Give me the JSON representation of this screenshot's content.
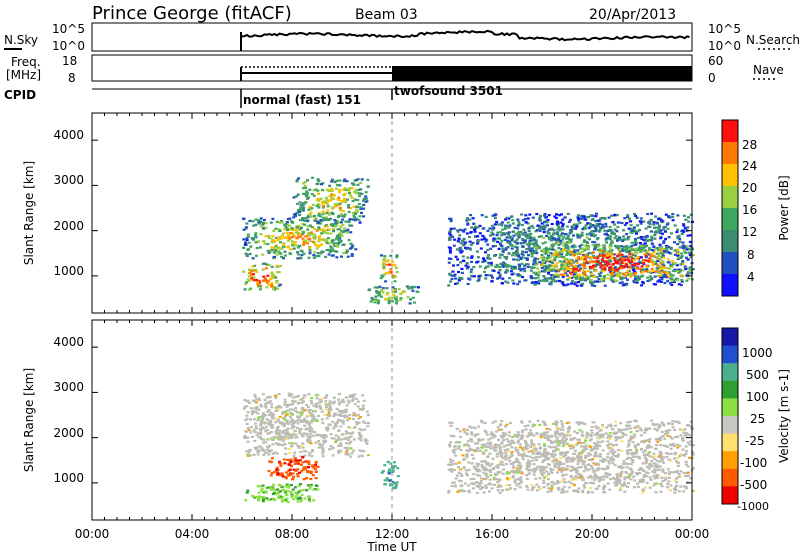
{
  "header": {
    "station": "Prince George (fitACF)",
    "beam": "Beam 03",
    "date": "20/Apr/2013"
  },
  "top_panels": {
    "nsky_label": "N.Sky",
    "nsearch_label": "N.Search",
    "noise_ticks": [
      "10^5",
      "10^0"
    ],
    "freq_label_1": "Freq.",
    "freq_label_2": "[MHz]",
    "freq_ticks": [
      "18",
      "8"
    ],
    "nave_label": "Nave",
    "nave_ticks": [
      "60",
      "0"
    ],
    "cpid_label": "CPID",
    "cpid_segments": [
      {
        "label": "normal (fast) 151",
        "start_hour": 6.0
      },
      {
        "label": "twofsound 3501",
        "start_hour": 12.0
      }
    ]
  },
  "colors": {
    "power_scale": [
      "#1010ff",
      "#2050c0",
      "#3c8c70",
      "#3ea860",
      "#9ad040",
      "#ffc000",
      "#ff7800",
      "#ff1010"
    ],
    "velocity_scale": [
      "#ee0000",
      "#ff5a00",
      "#ffa000",
      "#ffe070",
      "#c8c8c0",
      "#8ce040",
      "#2ea030",
      "#4cb090",
      "#2050d0",
      "#1818a8"
    ],
    "grey": "#bcbcb4"
  },
  "chart_data": [
    {
      "type": "heatmap",
      "name": "power",
      "ylabel": "Slant Range [km]",
      "colorbar_label": "Power [dB]",
      "colorbar_ticks": [
        "28",
        "24",
        "20",
        "16",
        "12",
        "8",
        "4"
      ],
      "x_range_hours": [
        0,
        24
      ],
      "y_range_km": [
        180,
        4600
      ],
      "yticks": [
        "4000",
        "3000",
        "2000",
        "1000"
      ],
      "cpid_change_hour": 12.0,
      "echo_regions": [
        {
          "x0": 6.0,
          "x1": 10.5,
          "y0": 1400,
          "y1": 2300,
          "peak": "mid"
        },
        {
          "x0": 6.0,
          "x1": 7.5,
          "y0": 700,
          "y1": 1300,
          "peak": "high"
        },
        {
          "x0": 8.0,
          "x1": 11.0,
          "y0": 2200,
          "y1": 3200,
          "peak": "mid"
        },
        {
          "x0": 11.5,
          "x1": 12.2,
          "y0": 900,
          "y1": 1500,
          "peak": "high"
        },
        {
          "x0": 11.0,
          "x1": 13.0,
          "y0": 400,
          "y1": 800,
          "peak": "mid"
        },
        {
          "x0": 14.2,
          "x1": 24.0,
          "y0": 800,
          "y1": 2400,
          "peak": "low"
        },
        {
          "x0": 17.5,
          "x1": 24.0,
          "y0": 900,
          "y1": 1700,
          "peak": "high"
        }
      ]
    },
    {
      "type": "heatmap",
      "name": "velocity",
      "ylabel": "Slant Range [km]",
      "xlabel": "Time UT",
      "colorbar_label": "Velocity [m s-1]",
      "colorbar_ticks": [
        "1000",
        "500",
        "100",
        "25",
        "-25",
        "-100",
        "-500",
        "-1000"
      ],
      "x_range_hours": [
        0,
        24
      ],
      "y_range_km": [
        180,
        4600
      ],
      "xticks": [
        "00:00",
        "04:00",
        "08:00",
        "12:00",
        "16:00",
        "20:00",
        "00:00"
      ],
      "yticks": [
        "4000",
        "3000",
        "2000",
        "1000"
      ],
      "cpid_change_hour": 12.0,
      "echo_regions": [
        {
          "x0": 6.0,
          "x1": 11.0,
          "y0": 1600,
          "y1": 3000,
          "vel": "ground"
        },
        {
          "x0": 7.0,
          "x1": 9.0,
          "y0": 1100,
          "y1": 1600,
          "vel": "away-high"
        },
        {
          "x0": 6.0,
          "x1": 9.0,
          "y0": 600,
          "y1": 1000,
          "vel": "toward-low"
        },
        {
          "x0": 11.5,
          "x1": 12.2,
          "y0": 900,
          "y1": 1500,
          "vel": "toward-mid"
        },
        {
          "x0": 14.2,
          "x1": 24.0,
          "y0": 800,
          "y1": 2400,
          "vel": "ground"
        }
      ]
    }
  ]
}
